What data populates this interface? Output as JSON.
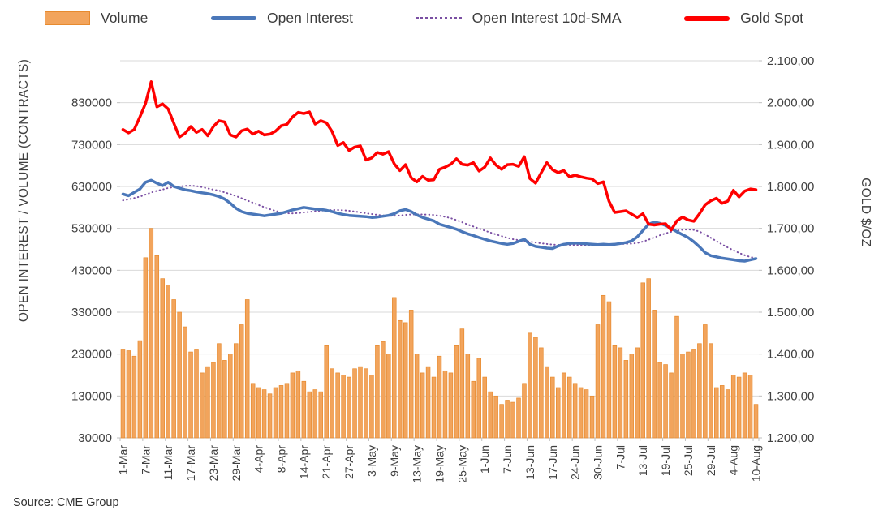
{
  "source_note": "Source: CME Group",
  "chart_data": {
    "type": "combo-bar-line",
    "title": "",
    "legend_position": "top",
    "grid": "horizontal",
    "x_tick_every": 4,
    "x_tick_labels": [
      "1-Mar",
      "7-Mar",
      "11-Mar",
      "17-Mar",
      "23-Mar",
      "29-Mar",
      "4-Apr",
      "8-Apr",
      "14-Apr",
      "21-Apr",
      "27-Apr",
      "3-May",
      "9-May",
      "13-May",
      "19-May",
      "25-May",
      "1-Jun",
      "7-Jun",
      "13-Jun",
      "17-Jun",
      "24-Jun",
      "30-Jun",
      "7-Jul",
      "13-Jul",
      "19-Jul",
      "25-Jul",
      "29-Jul",
      "4-Aug",
      "10-Aug"
    ],
    "x": [
      "1-Mar",
      "2-Mar",
      "3-Mar",
      "4-Mar",
      "7-Mar",
      "8-Mar",
      "9-Mar",
      "10-Mar",
      "11-Mar",
      "14-Mar",
      "15-Mar",
      "16-Mar",
      "17-Mar",
      "18-Mar",
      "21-Mar",
      "22-Mar",
      "23-Mar",
      "24-Mar",
      "25-Mar",
      "28-Mar",
      "29-Mar",
      "30-Mar",
      "31-Mar",
      "1-Apr",
      "4-Apr",
      "5-Apr",
      "6-Apr",
      "7-Apr",
      "8-Apr",
      "11-Apr",
      "12-Apr",
      "13-Apr",
      "14-Apr",
      "18-Apr",
      "19-Apr",
      "20-Apr",
      "21-Apr",
      "22-Apr",
      "25-Apr",
      "26-Apr",
      "27-Apr",
      "28-Apr",
      "29-Apr",
      "2-May",
      "3-May",
      "4-May",
      "5-May",
      "6-May",
      "9-May",
      "10-May",
      "11-May",
      "12-May",
      "13-May",
      "16-May",
      "17-May",
      "18-May",
      "19-May",
      "20-May",
      "23-May",
      "24-May",
      "25-May",
      "26-May",
      "27-May",
      "31-May",
      "1-Jun",
      "2-Jun",
      "3-Jun",
      "6-Jun",
      "7-Jun",
      "8-Jun",
      "9-Jun",
      "10-Jun",
      "13-Jun",
      "14-Jun",
      "15-Jun",
      "16-Jun",
      "17-Jun",
      "21-Jun",
      "22-Jun",
      "23-Jun",
      "24-Jun",
      "27-Jun",
      "28-Jun",
      "29-Jun",
      "30-Jun",
      "1-Jul",
      "5-Jul",
      "6-Jul",
      "7-Jul",
      "8-Jul",
      "11-Jul",
      "12-Jul",
      "13-Jul",
      "14-Jul",
      "15-Jul",
      "18-Jul",
      "19-Jul",
      "20-Jul",
      "21-Jul",
      "22-Jul",
      "25-Jul",
      "26-Jul",
      "27-Jul",
      "28-Jul",
      "29-Jul",
      "1-Aug",
      "2-Aug",
      "3-Aug",
      "4-Aug",
      "5-Aug",
      "8-Aug",
      "9-Aug",
      "10-Aug"
    ],
    "left_axis": {
      "label": "OPEN INTEREST / VOLUME (CONTRACTS)",
      "ticks": [
        30000,
        130000,
        230000,
        330000,
        430000,
        530000,
        630000,
        730000,
        830000
      ],
      "tick_labels": [
        "30000",
        "130000",
        "230000",
        "330000",
        "430000",
        "530000",
        "630000",
        "730000",
        "830000"
      ],
      "plot_min": 30000,
      "plot_max": 930000,
      "grid_step": 100000
    },
    "right_axis": {
      "label": "GOLD $/OZ",
      "ticks": [
        1200,
        1300,
        1400,
        1500,
        1600,
        1700,
        1800,
        1900,
        2000,
        2100
      ],
      "tick_labels": [
        "1.200,00",
        "1.300,00",
        "1.400,00",
        "1.500,00",
        "1.600,00",
        "1.700,00",
        "1.800,00",
        "1.900,00",
        "2.000,00",
        "2.100,00"
      ],
      "plot_min": 1200,
      "plot_max": 2100
    },
    "series": [
      {
        "name": "Volume",
        "type": "bar",
        "axis": "left",
        "color": "#F2A45C",
        "border_color": "#E78A2E",
        "values": [
          240000,
          238000,
          225000,
          262000,
          460000,
          530000,
          465000,
          410000,
          395000,
          360000,
          330000,
          295000,
          235000,
          240000,
          185000,
          200000,
          210000,
          255000,
          215000,
          230000,
          255000,
          300000,
          360000,
          160000,
          150000,
          145000,
          135000,
          150000,
          155000,
          160000,
          185000,
          190000,
          165000,
          140000,
          145000,
          140000,
          250000,
          195000,
          185000,
          180000,
          175000,
          195000,
          200000,
          195000,
          180000,
          250000,
          260000,
          230000,
          365000,
          310000,
          305000,
          335000,
          230000,
          185000,
          200000,
          175000,
          225000,
          190000,
          185000,
          250000,
          290000,
          230000,
          165000,
          220000,
          175000,
          140000,
          130000,
          110000,
          120000,
          115000,
          125000,
          160000,
          280000,
          270000,
          245000,
          200000,
          175000,
          150000,
          185000,
          175000,
          160000,
          150000,
          145000,
          130000,
          300000,
          370000,
          355000,
          250000,
          245000,
          215000,
          230000,
          245000,
          400000,
          410000,
          335000,
          210000,
          205000,
          185000,
          320000,
          230000,
          235000,
          240000,
          255000,
          300000,
          255000,
          150000,
          155000,
          145000,
          180000,
          175000,
          185000,
          180000,
          110000
        ]
      },
      {
        "name": "Open Interest",
        "type": "line",
        "axis": "left",
        "color": "#4A77B9",
        "line_width": 3.5,
        "values": [
          612000,
          608000,
          616000,
          624000,
          640000,
          645000,
          638000,
          632000,
          640000,
          630000,
          626000,
          622000,
          620000,
          617000,
          615000,
          613000,
          610000,
          606000,
          600000,
          590000,
          578000,
          570000,
          566000,
          564000,
          562000,
          560000,
          562000,
          564000,
          566000,
          570000,
          574000,
          577000,
          580000,
          578000,
          576000,
          575000,
          573000,
          570000,
          566000,
          563000,
          561000,
          560000,
          559000,
          558000,
          556000,
          557000,
          559000,
          561000,
          565000,
          572000,
          575000,
          570000,
          562000,
          556000,
          552000,
          548000,
          540000,
          536000,
          532000,
          528000,
          522000,
          517000,
          513000,
          508000,
          504000,
          500000,
          497000,
          494000,
          492000,
          494000,
          499000,
          504000,
          492000,
          487000,
          485000,
          483000,
          482000,
          488000,
          492000,
          494000,
          495000,
          494000,
          493000,
          492000,
          491000,
          492000,
          491000,
          492000,
          494000,
          496000,
          500000,
          510000,
          525000,
          540000,
          545000,
          542000,
          537000,
          530000,
          522000,
          515000,
          508000,
          498000,
          486000,
          472000,
          465000,
          462000,
          459000,
          457000,
          455000,
          453000,
          452000,
          455000,
          458000
        ]
      },
      {
        "name": "Open Interest 10d-SMA",
        "type": "line",
        "line_style": "dotted",
        "axis": "left",
        "color": "#7A4FA3",
        "line_width": 2,
        "derived": {
          "method": "simple-moving-average",
          "window": 10,
          "of": "Open Interest",
          "pre_period_values": [
            583000,
            586000,
            589000,
            592000,
            595000,
            598000,
            601000,
            604000,
            608000
          ]
        },
        "values": null
      },
      {
        "name": "Gold Spot",
        "type": "line",
        "axis": "right",
        "color": "#FF0000",
        "line_width": 3.5,
        "values": [
          1936,
          1928,
          1936,
          1966,
          1998,
          2050,
          1990,
          1997,
          1985,
          1951,
          1918,
          1927,
          1943,
          1929,
          1936,
          1921,
          1943,
          1957,
          1954,
          1923,
          1918,
          1933,
          1937,
          1925,
          1932,
          1923,
          1925,
          1932,
          1945,
          1948,
          1966,
          1977,
          1974,
          1978,
          1949,
          1957,
          1952,
          1931,
          1898,
          1905,
          1886,
          1894,
          1897,
          1863,
          1868,
          1881,
          1877,
          1883,
          1854,
          1838,
          1852,
          1821,
          1811,
          1824,
          1815,
          1816,
          1841,
          1846,
          1853,
          1866,
          1853,
          1851,
          1857,
          1837,
          1846,
          1868,
          1851,
          1841,
          1852,
          1853,
          1848,
          1871,
          1819,
          1808,
          1833,
          1857,
          1840,
          1833,
          1838,
          1823,
          1827,
          1823,
          1820,
          1818,
          1807,
          1811,
          1765,
          1738,
          1740,
          1742,
          1734,
          1726,
          1735,
          1710,
          1708,
          1710,
          1711,
          1696,
          1718,
          1727,
          1720,
          1717,
          1735,
          1756,
          1766,
          1772,
          1760,
          1765,
          1791,
          1775,
          1789,
          1794,
          1792
        ]
      }
    ]
  }
}
